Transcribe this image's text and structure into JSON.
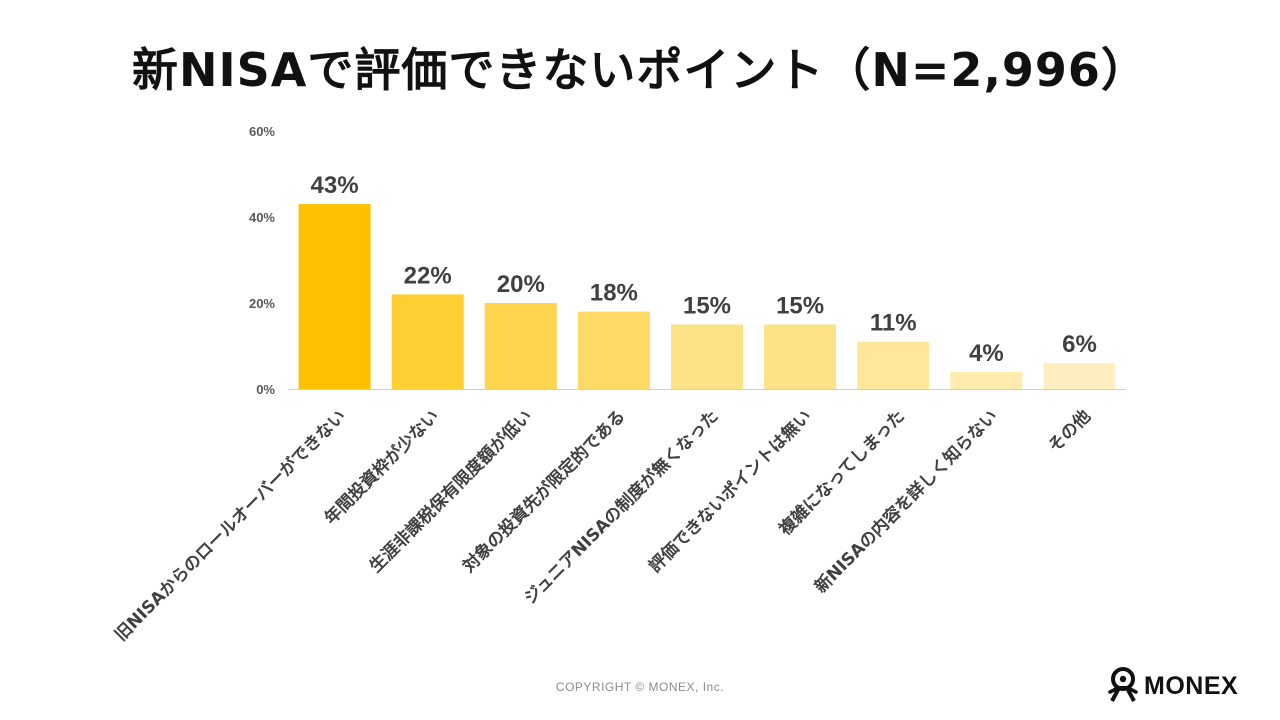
{
  "title": "新NISAで評価できないポイント（N=2,996）",
  "copyright": "COPYRIGHT © MONEX, Inc.",
  "logo": {
    "text": "MONEX",
    "icon": "monex-figure-icon"
  },
  "colors": {
    "bars": [
      "#FFC000",
      "#FFCE33",
      "#FFD54F",
      "#FFDA66",
      "#FFE285",
      "#FFE285",
      "#FFE699",
      "#FFEBAD",
      "#FFEFC0"
    ],
    "axis": "#d0d0d0",
    "text": "#404040"
  },
  "chart_data": {
    "type": "bar",
    "categories": [
      "旧NISAからのロールオーバーができない",
      "年間投資枠が少ない",
      "生涯非課税保有限度額が低い",
      "対象の投資先が限定的である",
      "ジュニアNISAの制度が無くなった",
      "評価できないポイントは無い",
      "複雑になってしまった",
      "新NISAの内容を詳しく知らない",
      "その他"
    ],
    "values": [
      43,
      22,
      20,
      18,
      15,
      15,
      11,
      4,
      6
    ],
    "data_labels": [
      "43%",
      "22%",
      "20%",
      "18%",
      "15%",
      "15%",
      "11%",
      "4%",
      "6%"
    ],
    "y_ticks": [
      "0%",
      "20%",
      "40%",
      "60%"
    ],
    "ylim": [
      0,
      60
    ],
    "title": "新NISAで評価できないポイント（N=2,996）",
    "grid": false,
    "legend": "none"
  }
}
